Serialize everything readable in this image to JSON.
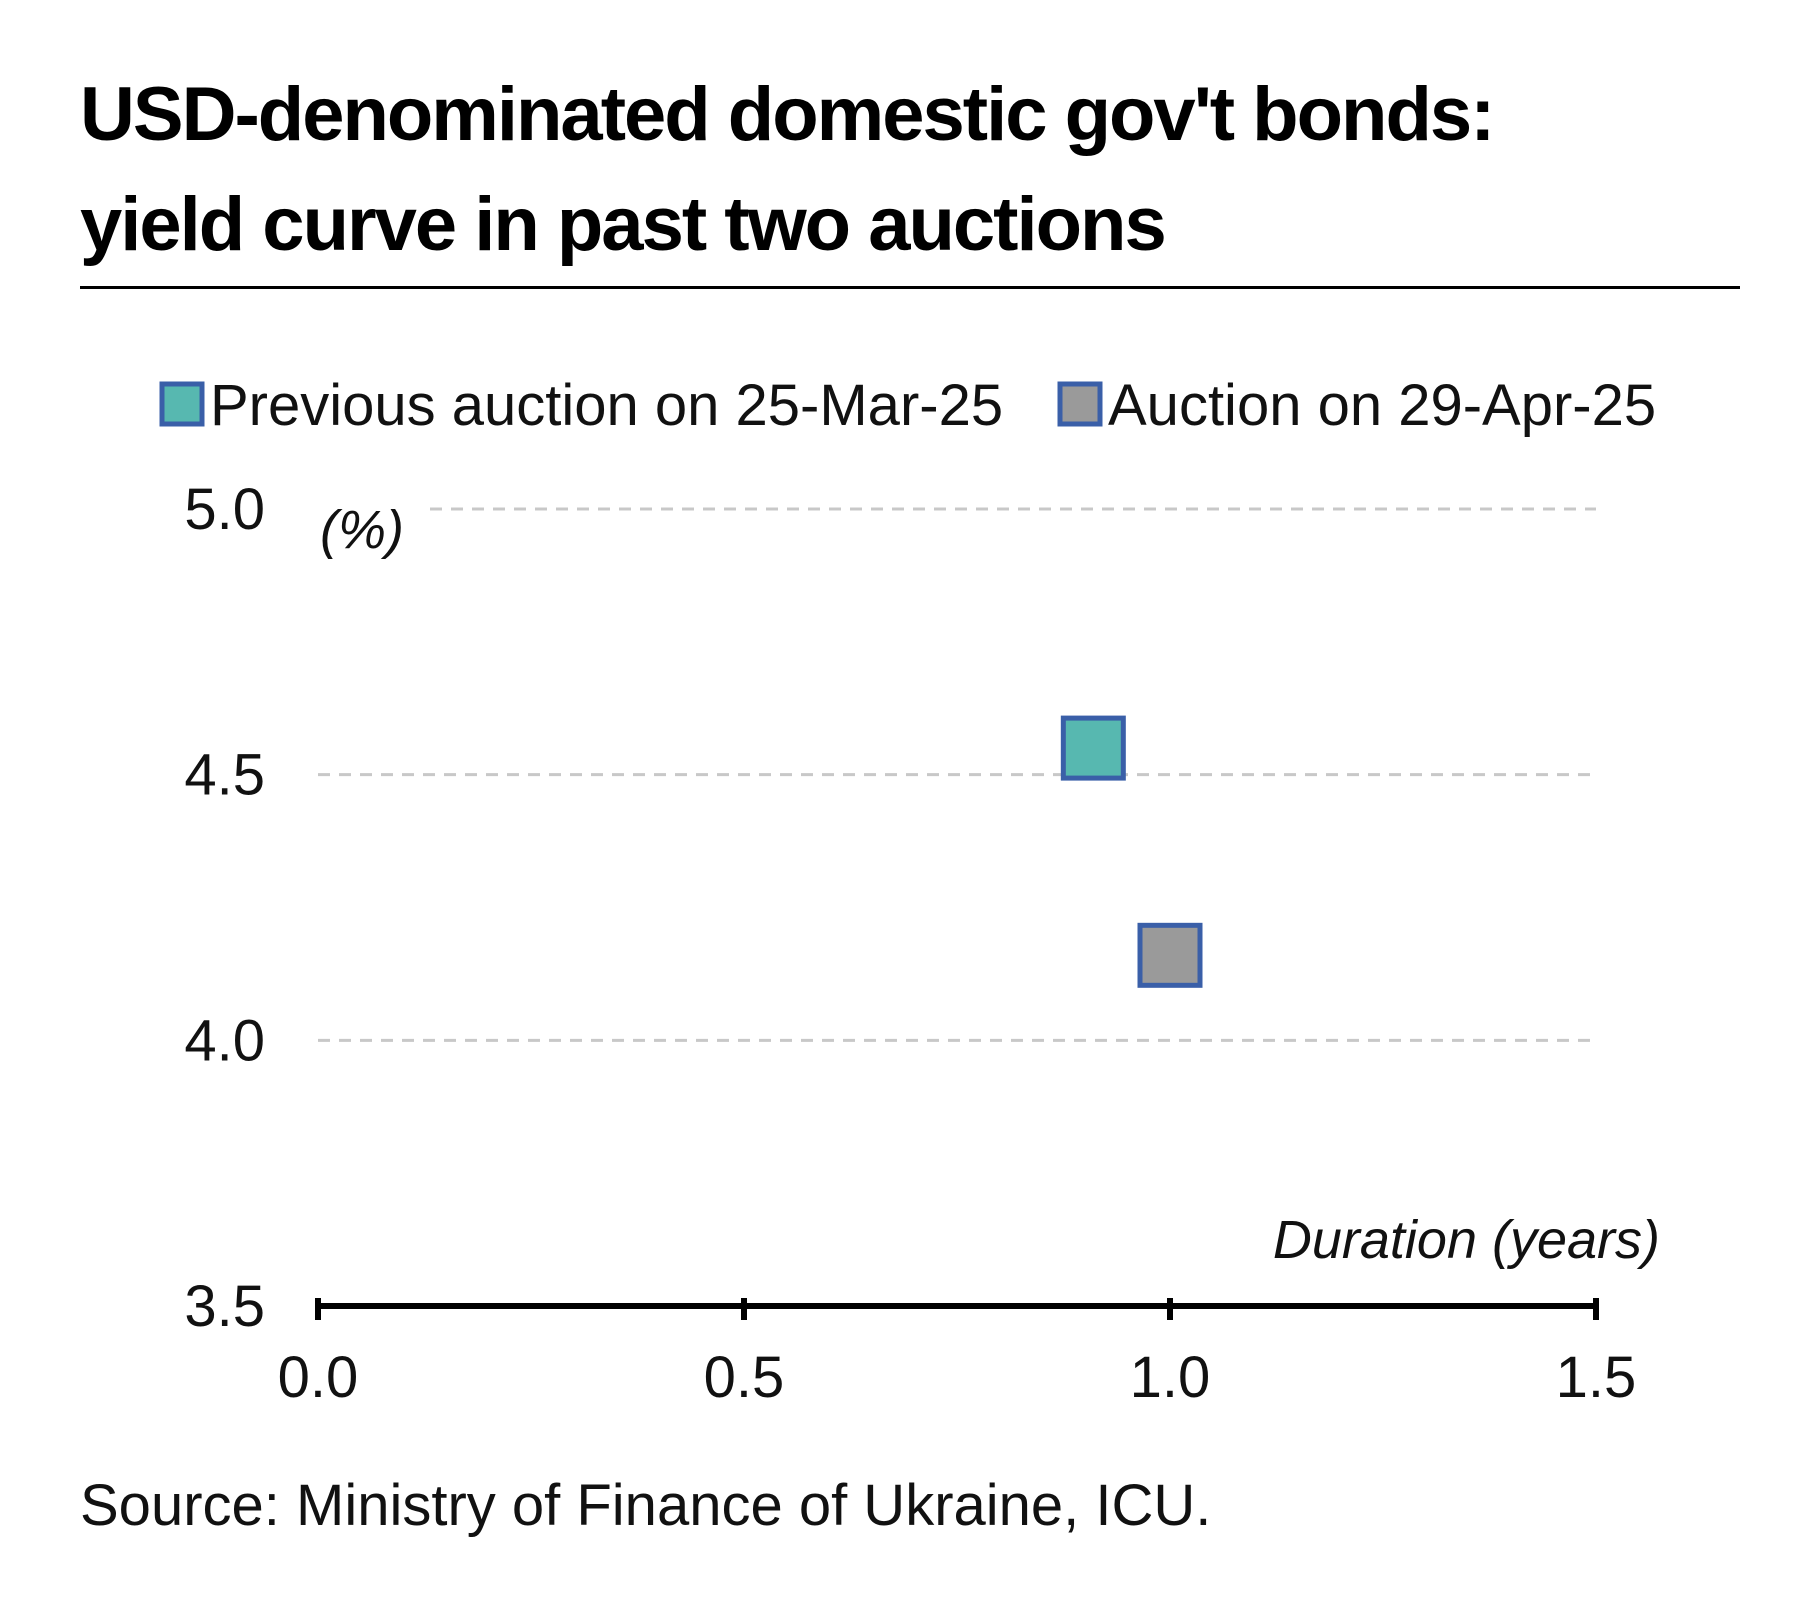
{
  "title_line1": "USD-denominated domestic gov't bonds:",
  "title_line2": "yield curve in past two auctions",
  "source": "Source: Ministry of Finance of Ukraine, ICU.",
  "chart_data": {
    "type": "scatter",
    "title": "USD-denominated domestic gov't bonds: yield curve in past two auctions",
    "xlabel": "Duration (years)",
    "ylabel": "(%)",
    "xlim": [
      0.0,
      1.5
    ],
    "ylim": [
      3.5,
      5.0
    ],
    "x_ticks": [
      "0.0",
      "0.5",
      "1.0",
      "1.5"
    ],
    "y_ticks": [
      "5.0",
      "4.5",
      "4.0",
      "3.5"
    ],
    "grid": "horizontal dashed",
    "legend_position": "top",
    "series": [
      {
        "name": "Previous auction on 25-Mar-25",
        "color": "#57b8b0",
        "edge_color": "#3a5fa8",
        "points": [
          {
            "x": 0.91,
            "y": 4.55
          }
        ]
      },
      {
        "name": "Auction on 29-Apr-25",
        "color": "#9a9a9a",
        "edge_color": "#3a5fa8",
        "points": [
          {
            "x": 1.0,
            "y": 4.16
          }
        ]
      }
    ]
  }
}
